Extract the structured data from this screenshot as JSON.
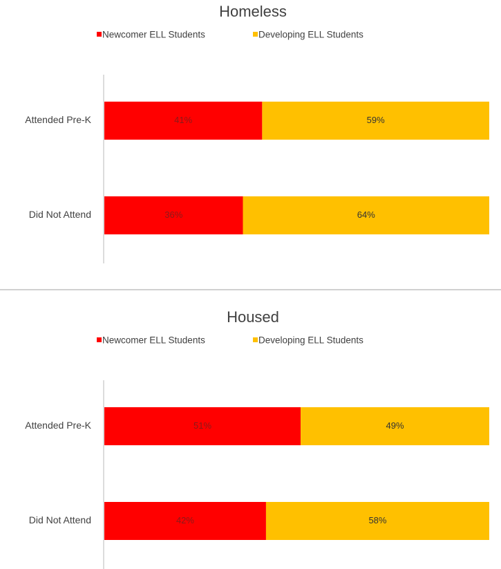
{
  "chart_data": [
    {
      "type": "bar",
      "orientation": "horizontal",
      "stacked": true,
      "title": "Homeless",
      "categories": [
        "Attended Pre-K",
        "Did Not Attend"
      ],
      "series": [
        {
          "name": "Newcomer ELL Students",
          "color": "#ff0000",
          "values": [
            41,
            36
          ],
          "value_labels": [
            "41%",
            "36%"
          ]
        },
        {
          "name": "Developing ELL Students",
          "color": "#ffc000",
          "values": [
            59,
            64
          ],
          "value_labels": [
            "59%",
            "64%"
          ]
        }
      ]
    },
    {
      "type": "bar",
      "orientation": "horizontal",
      "stacked": true,
      "title": "Housed",
      "categories": [
        "Attended Pre-K",
        "Did Not Attend"
      ],
      "series": [
        {
          "name": "Newcomer ELL Students",
          "color": "#ff0000",
          "values": [
            51,
            42
          ],
          "value_labels": [
            "51%",
            "42%"
          ]
        },
        {
          "name": "Developing ELL Students",
          "color": "#ffc000",
          "values": [
            49,
            58
          ],
          "value_labels": [
            "49%",
            "58%"
          ]
        }
      ]
    }
  ]
}
